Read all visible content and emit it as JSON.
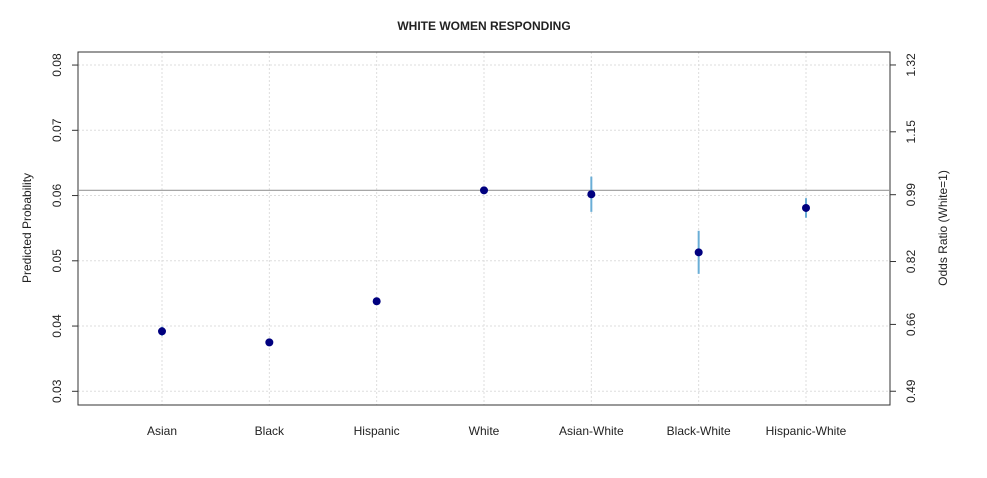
{
  "chart_data": {
    "type": "dotplot",
    "title": "WHITE WOMEN RESPONDING",
    "y_label": "Predicted Probability",
    "y2_label": "Odds Ratio (White=1)",
    "categories": [
      "Asian",
      "Black",
      "Hispanic",
      "White",
      "Asian-White",
      "Black-White",
      "Hispanic-White"
    ],
    "values": [
      0.0392,
      0.0375,
      0.0438,
      0.0608,
      0.0602,
      0.0513,
      0.0581
    ],
    "errors": [
      0.0007,
      0.0005,
      0.0004,
      0,
      0.0027,
      0.0033,
      0.0015
    ],
    "color": "#00007f",
    "error_color": "#6aaed6",
    "hline": 0.0608,
    "ylim": [
      0.0279,
      0.082
    ],
    "yticks": [
      0.03,
      0.04,
      0.05,
      0.06,
      0.07,
      0.08
    ],
    "y2lim": [
      0.455,
      1.353
    ],
    "y2ticks": [
      0.49,
      0.66,
      0.82,
      0.99,
      1.15,
      1.32
    ],
    "grid": true
  }
}
